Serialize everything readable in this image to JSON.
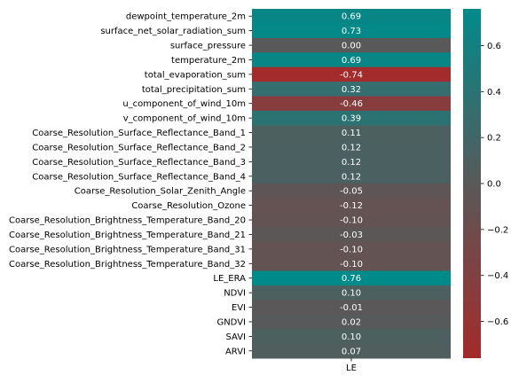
{
  "chart_data": {
    "type": "heatmap",
    "title": "",
    "xlabel": "",
    "ylabel": "",
    "columns": [
      "LE"
    ],
    "rows": [
      "dewpoint_temperature_2m",
      "surface_net_solar_radiation_sum",
      "surface_pressure",
      "temperature_2m",
      "total_evaporation_sum",
      "total_precipitation_sum",
      "u_component_of_wind_10m",
      "v_component_of_wind_10m",
      "Coarse_Resolution_Surface_Reflectance_Band_1",
      "Coarse_Resolution_Surface_Reflectance_Band_2",
      "Coarse_Resolution_Surface_Reflectance_Band_3",
      "Coarse_Resolution_Surface_Reflectance_Band_4",
      "Coarse_Resolution_Solar_Zenith_Angle",
      "Coarse_Resolution_Ozone",
      "Coarse_Resolution_Brightness_Temperature_Band_20",
      "Coarse_Resolution_Brightness_Temperature_Band_21",
      "Coarse_Resolution_Brightness_Temperature_Band_31",
      "Coarse_Resolution_Brightness_Temperature_Band_32",
      "LE_ERA",
      "NDVI",
      "EVI",
      "GNDVI",
      "SAVI",
      "ARVI"
    ],
    "values": [
      0.69,
      0.73,
      0.0,
      0.69,
      -0.74,
      0.32,
      -0.46,
      0.39,
      0.11,
      0.12,
      0.12,
      0.12,
      -0.05,
      -0.12,
      -0.1,
      -0.03,
      -0.1,
      -0.1,
      0.76,
      0.1,
      -0.01,
      0.02,
      0.1,
      0.07
    ],
    "value_labels": [
      "0.69",
      "0.73",
      "0.00",
      "0.69",
      "-0.74",
      "0.32",
      "-0.46",
      "0.39",
      "0.11",
      "0.12",
      "0.12",
      "0.12",
      "-0.05",
      "-0.12",
      "-0.10",
      "-0.03",
      "-0.10",
      "-0.10",
      "0.76",
      "0.10",
      "-0.01",
      "0.02",
      "0.10",
      "0.07"
    ],
    "colorbar": {
      "vmin": -0.76,
      "vmax": 0.76,
      "ticks": [
        -0.6,
        -0.4,
        -0.2,
        0.0,
        0.2,
        0.4,
        0.6
      ],
      "tick_labels": [
        "−0.6",
        "−0.4",
        "−0.2",
        "0.0",
        "0.2",
        "0.4",
        "0.6"
      ],
      "low_color": "#a52a2a",
      "mid_color": "#595959",
      "high_color": "#008b8b"
    }
  }
}
